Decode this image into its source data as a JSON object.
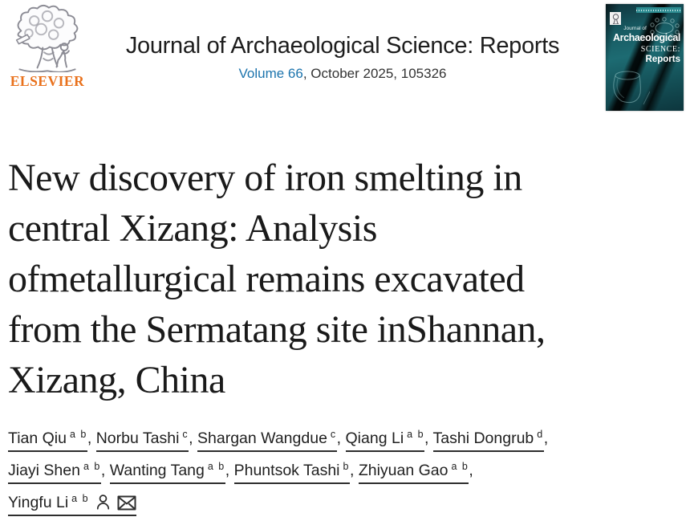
{
  "header": {
    "publisher_wordmark": "ELSEVIER",
    "journal_title": "Journal of Archaeological Science: Reports",
    "volume_link": "Volume 66",
    "issue_suffix": ", October 2025, 105326",
    "cover": {
      "journal_of": "Journal of",
      "archaeological": "Archaeological",
      "science": "SCIENCE:",
      "reports": "Reports"
    }
  },
  "article": {
    "title": "New discovery of iron smelting in\ncentral Xizang: Analysis\nofmetallurgical remains excavated\nfrom the Sermatang site inShannan,\nXizang, China"
  },
  "authors": [
    {
      "name": "Tian Qiu",
      "sup": "a b"
    },
    {
      "name": "Norbu Tashi",
      "sup": "c"
    },
    {
      "name": "Shargan Wangdue",
      "sup": "c"
    },
    {
      "name": "Qiang Li",
      "sup": "a b"
    },
    {
      "name": "Tashi Dongrub",
      "sup": "d"
    },
    {
      "name": "Jiayi Shen",
      "sup": "a b"
    },
    {
      "name": "Wanting Tang",
      "sup": "a b"
    },
    {
      "name": "Phuntsok Tashi",
      "sup": "b"
    },
    {
      "name": "Zhiyuan Gao",
      "sup": "a b"
    },
    {
      "name": "Yingfu Li",
      "sup": "a b",
      "profile_icon": true,
      "email_icon": true
    }
  ],
  "icons": {
    "profile": "person-icon",
    "corresponding_author": "envelope-icon",
    "publisher": "elsevier-tree-icon"
  },
  "colors": {
    "link_blue": "#1c74ad",
    "elsevier_orange": "#e9711c",
    "text_dark": "#1f1f1f",
    "cover_teal": "#1d6b72"
  }
}
